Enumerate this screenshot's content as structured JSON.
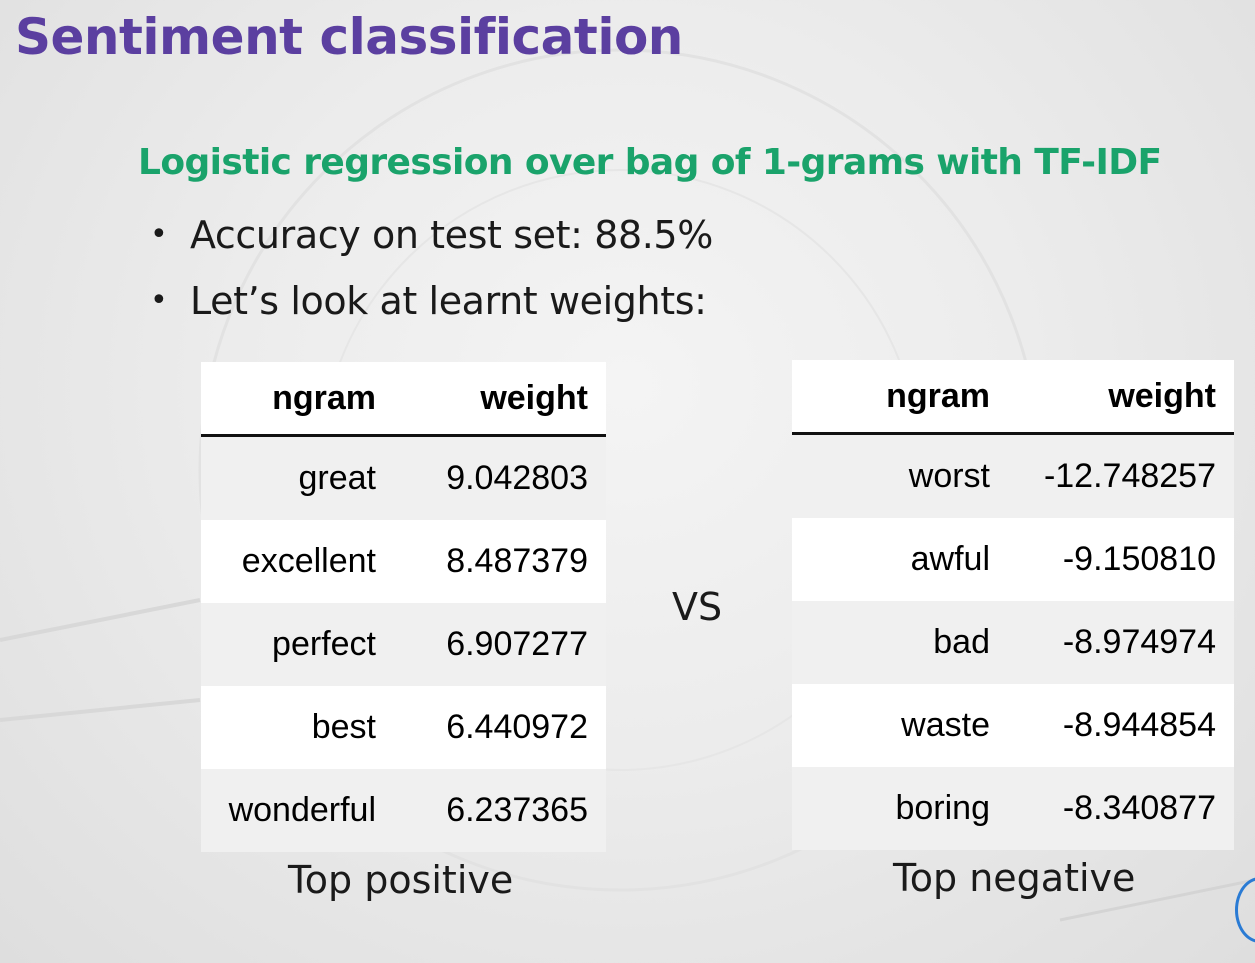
{
  "slide": {
    "title": "Sentiment classification",
    "subtitle": "Logistic regression over bag of 1-grams with TF-IDF",
    "bullets": [
      "Accuracy on test set: 88.5%",
      "Let’s look at learnt weights:"
    ],
    "vs_label": "VS"
  },
  "positive_table": {
    "headers": [
      "ngram",
      "weight"
    ],
    "rows": [
      [
        "great",
        "9.042803"
      ],
      [
        "excellent",
        "8.487379"
      ],
      [
        "perfect",
        "6.907277"
      ],
      [
        "best",
        "6.440972"
      ],
      [
        "wonderful",
        "6.237365"
      ]
    ],
    "caption": "Top positive"
  },
  "negative_table": {
    "headers": [
      "ngram",
      "weight"
    ],
    "rows": [
      [
        "worst",
        "-12.748257"
      ],
      [
        "awful",
        "-9.150810"
      ],
      [
        "bad",
        "-8.974974"
      ],
      [
        "waste",
        "-8.944854"
      ],
      [
        "boring",
        "-8.340877"
      ]
    ],
    "caption": "Top negative"
  },
  "colors": {
    "title": "#5b3fa0",
    "subtitle": "#1aa36b",
    "accent_ring": "#2a7bd4"
  }
}
